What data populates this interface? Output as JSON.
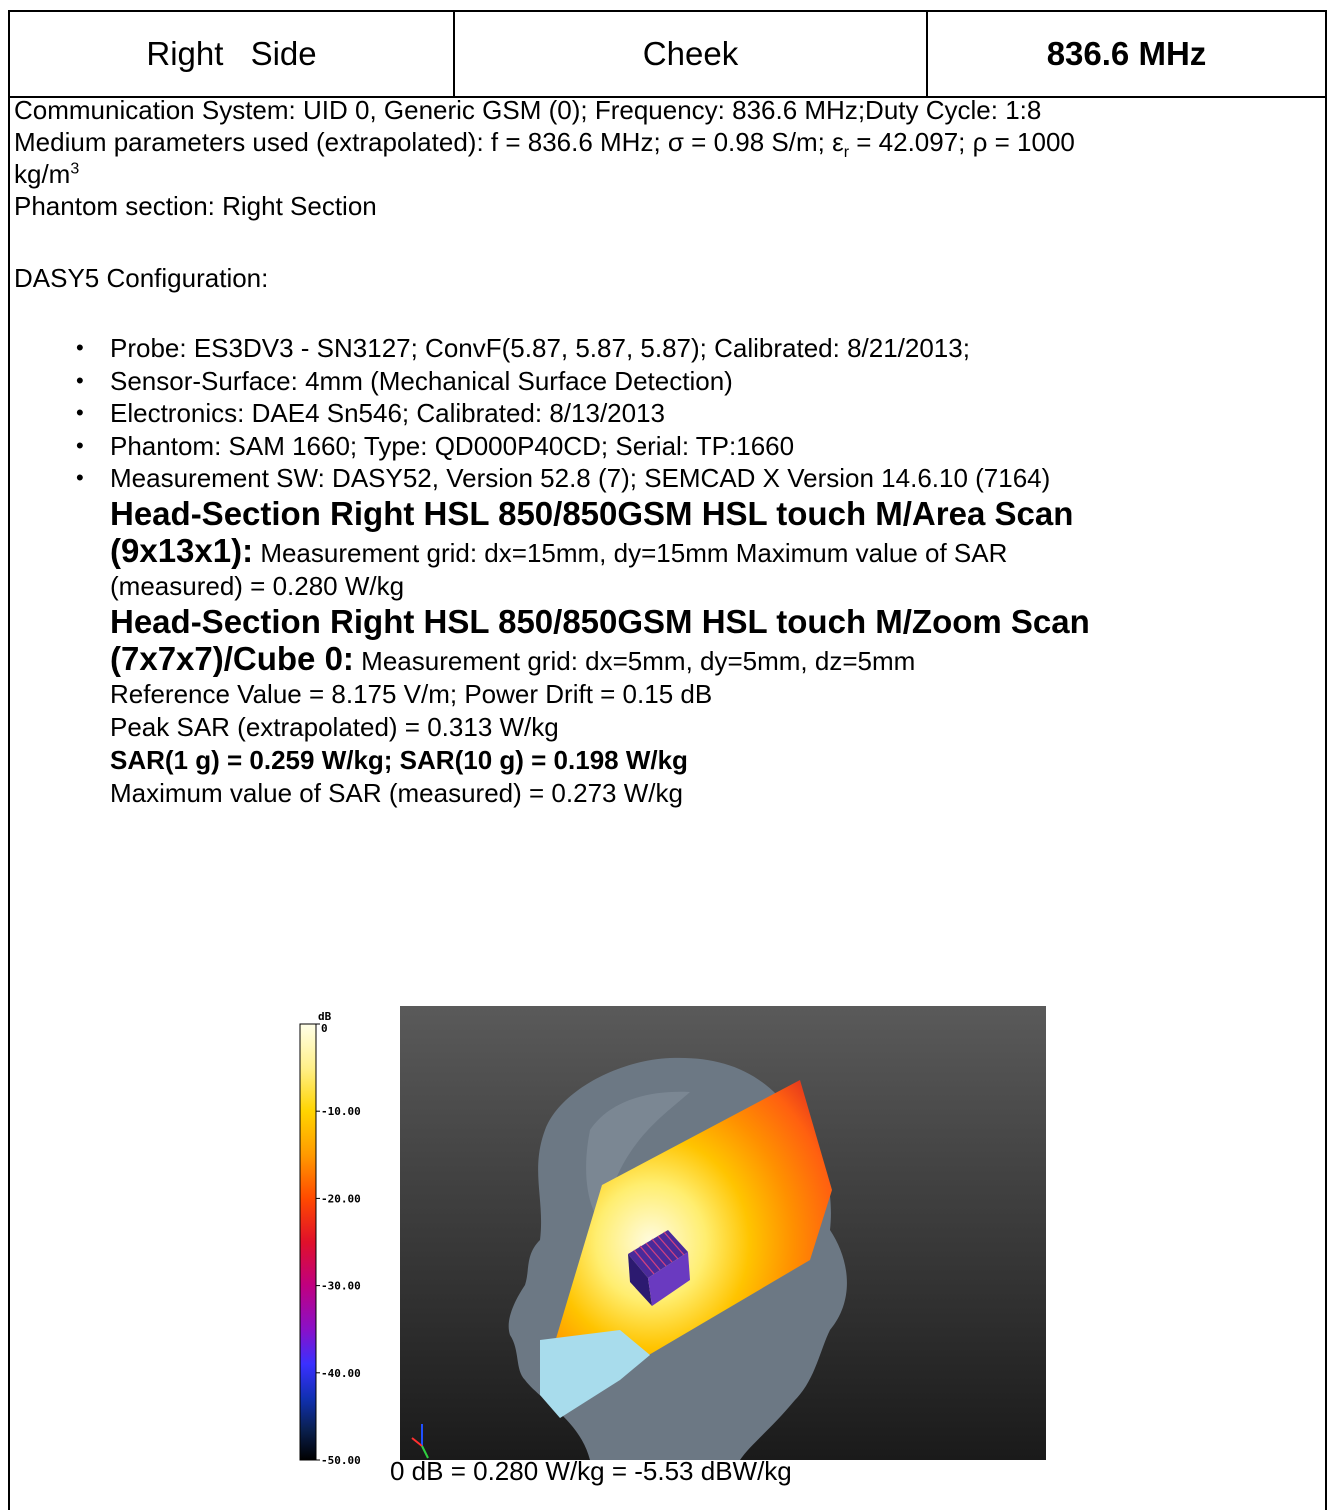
{
  "header": {
    "side": "Right Side",
    "position": "Cheek",
    "frequency": "836.6 MHz"
  },
  "info": {
    "comm_system": "Communication System: UID 0, Generic GSM (0); Frequency: 836.6 MHz;Duty Cycle: 1:8",
    "medium_prefix": "Medium parameters used (extrapolated): f = 836.6 MHz; σ = 0.98 S/m; ε",
    "medium_sub": "r",
    "medium_suffix": " = 42.097; ρ = 1000",
    "medium_unit": "kg/m",
    "medium_unit_sup": "3",
    "phantom_section": "Phantom section: Right Section",
    "dasy_config": "DASY5 Configuration:"
  },
  "config_items": [
    "Probe: ES3DV3 - SN3127; ConvF(5.87, 5.87, 5.87); Calibrated: 8/21/2013;",
    "Sensor-Surface: 4mm (Mechanical Surface Detection)",
    "Electronics: DAE4 Sn546; Calibrated: 8/13/2013",
    "Phantom: SAM 1660; Type: QD000P40CD; Serial: TP:1660",
    "Measurement SW: DASY52, Version 52.8 (7); SEMCAD X Version 14.6.10 (7164)"
  ],
  "area_scan": {
    "title1": "Head-Section Right HSL 850/850GSM HSL touch M/Area Scan",
    "title2": "(9x13x1):",
    "text": " Measurement grid: dx=15mm, dy=15mm Maximum value of SAR",
    "text2": "(measured) = 0.280 W/kg"
  },
  "zoom_scan": {
    "title1": "Head-Section Right HSL 850/850GSM HSL touch M/Zoom Scan",
    "title2": "(7x7x7)/Cube 0:",
    "text": " Measurement grid: dx=5mm, dy=5mm, dz=5mm",
    "reference": "Reference Value = 8.175 V/m; Power Drift = 0.15 dB",
    "peak": "Peak SAR (extrapolated) = 0.313 W/kg",
    "sar": "SAR(1 g) = 0.259 W/kg; SAR(10 g) = 0.198 W/kg",
    "max": "Maximum value of SAR (measured) = 0.273 W/kg"
  },
  "colorbar": {
    "unit": "dB",
    "ticks": [
      "0",
      "-10.00",
      "-20.00",
      "-30.00",
      "-40.00",
      "-50.00"
    ]
  },
  "caption": "0 dB = 0.280 W/kg = -5.53 dBW/kg"
}
